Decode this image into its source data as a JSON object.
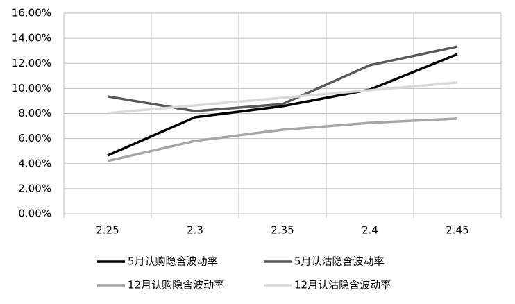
{
  "chart_data": {
    "type": "line",
    "categories": [
      "2.25",
      "2.3",
      "2.35",
      "2.4",
      "2.45"
    ],
    "series": [
      {
        "name": "5月认购隐含波动率",
        "color": "#000000",
        "values": [
          4.65,
          7.7,
          8.58,
          9.91,
          12.73
        ]
      },
      {
        "name": "5月认沽隐含波动率",
        "color": "#595959",
        "values": [
          9.36,
          8.19,
          8.75,
          11.85,
          13.34
        ]
      },
      {
        "name": "12月认购隐含波动率",
        "color": "#a6a6a6",
        "values": [
          4.21,
          5.81,
          6.7,
          7.25,
          7.59
        ]
      },
      {
        "name": "12月认沽隐含波动率",
        "color": "#d9d9d9",
        "values": [
          8.03,
          8.64,
          9.25,
          9.86,
          10.47
        ]
      }
    ],
    "ylim": [
      0,
      16
    ],
    "yticks": [
      {
        "value": 0,
        "label": "0.00%"
      },
      {
        "value": 2,
        "label": "2.00%"
      },
      {
        "value": 4,
        "label": "4.00%"
      },
      {
        "value": 6,
        "label": "6.00%"
      },
      {
        "value": 8,
        "label": "8.00%"
      },
      {
        "value": 10,
        "label": "10.00%"
      },
      {
        "value": 12,
        "label": "12.00%"
      },
      {
        "value": 14,
        "label": "14.00%"
      },
      {
        "value": 16,
        "label": "16.00%"
      }
    ],
    "grid": true
  }
}
